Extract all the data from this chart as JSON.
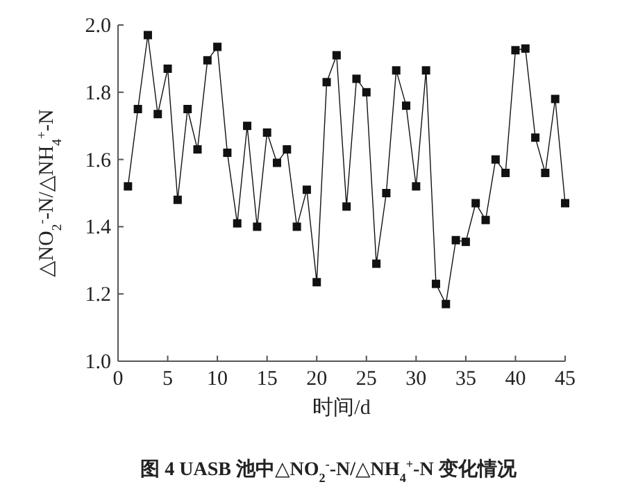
{
  "chart_data": {
    "type": "line",
    "title": "图 4   UASB 池中△NO$_{2}$$^{-}$-N/△NH$_{4}$$^{+}$-N 变化情况",
    "xlabel": "时间/d",
    "ylabel": "△NO$_{2}$$^{-}$-N/△NH$_{4}$$^{+}$-N",
    "x": [
      1,
      2,
      3,
      4,
      5,
      6,
      7,
      8,
      9,
      10,
      11,
      12,
      13,
      14,
      15,
      16,
      17,
      18,
      19,
      20,
      21,
      22,
      23,
      24,
      25,
      26,
      27,
      28,
      29,
      30,
      31,
      32,
      33,
      34,
      35,
      36,
      37,
      38,
      39,
      40,
      41,
      42,
      43,
      44,
      45
    ],
    "series": [
      {
        "color": "#111111",
        "values": [
          1.52,
          1.75,
          1.97,
          1.735,
          1.87,
          1.48,
          1.75,
          1.63,
          1.895,
          1.935,
          1.62,
          1.41,
          1.7,
          1.4,
          1.68,
          1.59,
          1.63,
          1.4,
          1.51,
          1.235,
          1.83,
          1.91,
          1.46,
          1.84,
          1.8,
          1.29,
          1.5,
          1.865,
          1.76,
          1.52,
          1.865,
          1.23,
          1.17,
          1.36,
          1.355,
          1.47,
          1.42,
          1.6,
          1.56,
          1.925,
          1.93,
          1.665,
          1.56,
          1.78,
          1.47
        ]
      }
    ],
    "xlim": [
      0,
      45
    ],
    "xticks": [
      0,
      5,
      10,
      15,
      20,
      25,
      30,
      35,
      40,
      45
    ],
    "ylim": [
      1,
      2
    ],
    "yticks": [
      {
        "value": 1,
        "label": "1.0"
      },
      {
        "value": 1.2,
        "label": "1.2"
      },
      {
        "value": 1.4,
        "label": "1.4"
      },
      {
        "value": 1.6,
        "label": "1.6"
      },
      {
        "value": 1.8,
        "label": "1.8"
      },
      {
        "value": 2,
        "label": "2.0"
      }
    ],
    "grid": false,
    "marker": "square",
    "line_style": "solid"
  }
}
